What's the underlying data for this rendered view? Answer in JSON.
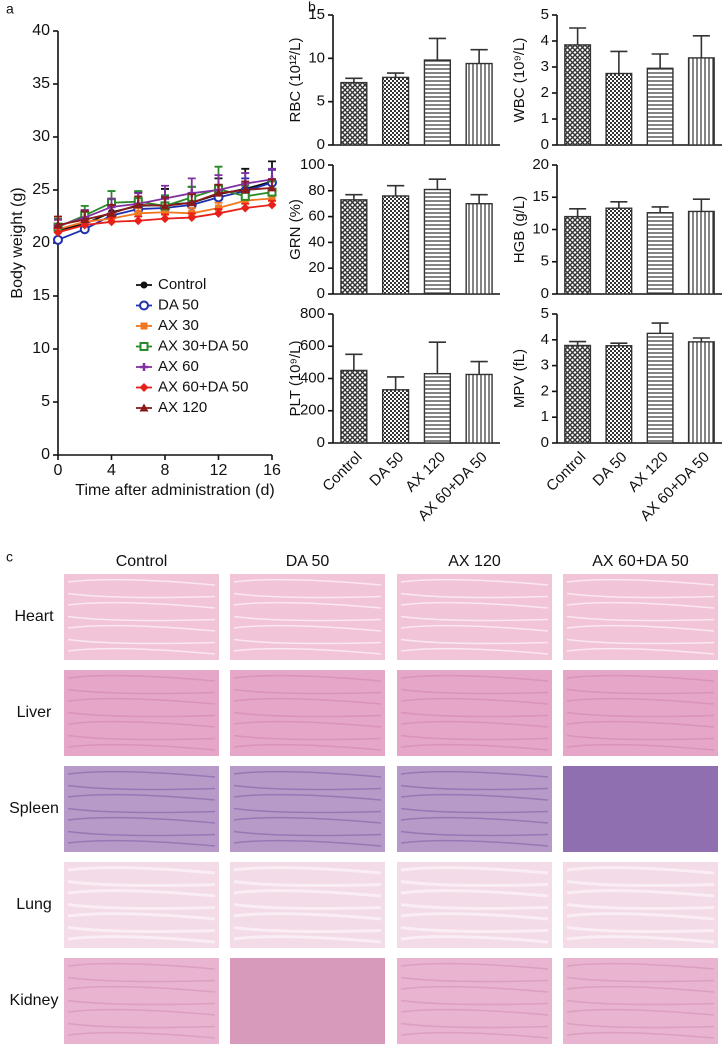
{
  "panel_labels": [
    "a",
    "b",
    "c"
  ],
  "chart_data": [
    {
      "type": "line",
      "x_label": "Time after administration (d)",
      "y_label": "Body weight (g)",
      "x": [
        0,
        2,
        4,
        6,
        8,
        10,
        12,
        14,
        16
      ],
      "xlim": [
        0,
        16
      ],
      "xticks": [
        0,
        4,
        8,
        12,
        16
      ],
      "ylim": [
        0,
        40
      ],
      "yticks": [
        0,
        5,
        10,
        15,
        20,
        25,
        30,
        35,
        40
      ],
      "series": [
        {
          "name": "Control",
          "color": "#111111",
          "marker": "circle",
          "values": [
            21.2,
            21.8,
            22.9,
            23.5,
            23.6,
            23.8,
            24.6,
            25.1,
            25.8
          ],
          "errors": [
            1.0,
            1.3,
            1.2,
            1.3,
            1.5,
            1.5,
            1.5,
            1.9,
            1.9
          ]
        },
        {
          "name": "DA 50",
          "color": "#1e2fb0",
          "marker": "open-circle",
          "values": [
            20.3,
            21.3,
            22.6,
            23.2,
            23.3,
            23.6,
            24.3,
            24.9,
            25.7
          ],
          "errors": [
            0.8,
            0.8,
            1.0,
            1.0,
            1.1,
            1.1,
            1.1,
            1.2,
            1.2
          ]
        },
        {
          "name": "AX 30",
          "color": "#f07820",
          "marker": "square",
          "values": [
            21.3,
            22.0,
            22.3,
            22.8,
            22.9,
            22.8,
            23.3,
            24.0,
            24.2
          ],
          "errors": [
            0.5,
            0.5,
            0.5,
            0.5,
            0.5,
            0.5,
            0.5,
            0.5,
            0.5
          ]
        },
        {
          "name": "AX 30+DA 50",
          "color": "#2a8a2a",
          "marker": "open-square",
          "values": [
            21.5,
            22.6,
            23.8,
            23.9,
            23.5,
            24.3,
            25.1,
            24.4,
            24.8
          ],
          "errors": [
            0.8,
            0.9,
            1.1,
            1.0,
            1.0,
            1.0,
            2.1,
            1.0,
            1.0
          ]
        },
        {
          "name": "AX 60",
          "color": "#8030a0",
          "marker": "cross",
          "values": [
            21.6,
            22.4,
            23.4,
            23.7,
            24.2,
            24.7,
            25.0,
            25.6,
            26.0
          ],
          "errors": [
            0.6,
            0.7,
            0.8,
            1.0,
            1.2,
            1.4,
            1.4,
            1.0,
            1.0
          ]
        },
        {
          "name": "AX 60+DA 50",
          "color": "#e8201a",
          "marker": "diamond",
          "values": [
            21.0,
            21.7,
            22.0,
            22.1,
            22.3,
            22.4,
            22.8,
            23.3,
            23.6
          ],
          "errors": [
            0.4,
            0.4,
            0.4,
            0.4,
            0.4,
            0.4,
            0.4,
            0.4,
            0.4
          ]
        },
        {
          "name": "AX 120",
          "color": "#8b1a1a",
          "marker": "triangle",
          "values": [
            21.7,
            22.2,
            22.8,
            23.6,
            23.5,
            23.8,
            24.7,
            25.0,
            25.2
          ],
          "errors": [
            0.8,
            0.8,
            0.8,
            0.8,
            0.8,
            0.8,
            0.8,
            0.8,
            0.8
          ]
        }
      ]
    },
    {
      "type": "bar",
      "y_label": "RBC (10¹²/L)",
      "categories": [
        null,
        null,
        null,
        null
      ],
      "values": [
        7.2,
        7.8,
        9.8,
        9.4
      ],
      "errors": [
        0.5,
        0.5,
        2.5,
        1.6
      ],
      "ylim": [
        0,
        15
      ],
      "yticks": [
        0,
        5,
        10,
        15
      ],
      "color": "#333333"
    },
    {
      "type": "bar",
      "y_label": "WBC (10⁹/L)",
      "categories": [
        null,
        null,
        null,
        null
      ],
      "values": [
        3.85,
        2.75,
        2.95,
        3.35
      ],
      "errors": [
        0.65,
        0.85,
        0.55,
        0.85
      ],
      "ylim": [
        0,
        5
      ],
      "yticks": [
        0,
        1,
        2,
        3,
        4,
        5
      ],
      "color": "#333333"
    },
    {
      "type": "bar",
      "y_label": "GRN (%)",
      "categories": [
        null,
        null,
        null,
        null
      ],
      "values": [
        73,
        76,
        81,
        70
      ],
      "errors": [
        4,
        8,
        8,
        7
      ],
      "ylim": [
        0,
        100
      ],
      "yticks": [
        0,
        20,
        40,
        60,
        80,
        100
      ],
      "color": "#333333"
    },
    {
      "type": "bar",
      "y_label": "HGB (g/L)",
      "categories": [
        null,
        null,
        null,
        null
      ],
      "values": [
        12,
        13.3,
        12.6,
        12.8
      ],
      "errors": [
        1.2,
        1.0,
        0.9,
        1.9
      ],
      "ylim": [
        0,
        20
      ],
      "yticks": [
        0,
        5,
        10,
        15,
        20
      ],
      "color": "#333333"
    },
    {
      "type": "bar",
      "y_label": "PLT (10⁹/L)",
      "categories": [
        "Control",
        "DA 50",
        "AX 120",
        "AX 60+DA 50"
      ],
      "values": [
        450,
        330,
        430,
        425
      ],
      "errors": [
        100,
        80,
        195,
        80
      ],
      "ylim": [
        0,
        800
      ],
      "yticks": [
        0,
        200,
        400,
        600,
        800
      ],
      "color": "#333333"
    },
    {
      "type": "bar",
      "y_label": "MPV (fL)",
      "categories": [
        "Control",
        "DA 50",
        "AX 120",
        "AX 60+DA 50"
      ],
      "values": [
        3.78,
        3.77,
        4.25,
        3.92
      ],
      "errors": [
        0.15,
        0.1,
        0.4,
        0.15
      ],
      "ylim": [
        0,
        5
      ],
      "yticks": [
        0,
        1,
        2,
        3,
        4,
        5
      ],
      "color": "#333333"
    }
  ],
  "histology": {
    "columns": [
      "Control",
      "DA 50",
      "AX 120",
      "AX 60+DA 50"
    ],
    "rows": [
      "Heart",
      "Liver",
      "Spleen",
      "Lung",
      "Kidney"
    ]
  }
}
